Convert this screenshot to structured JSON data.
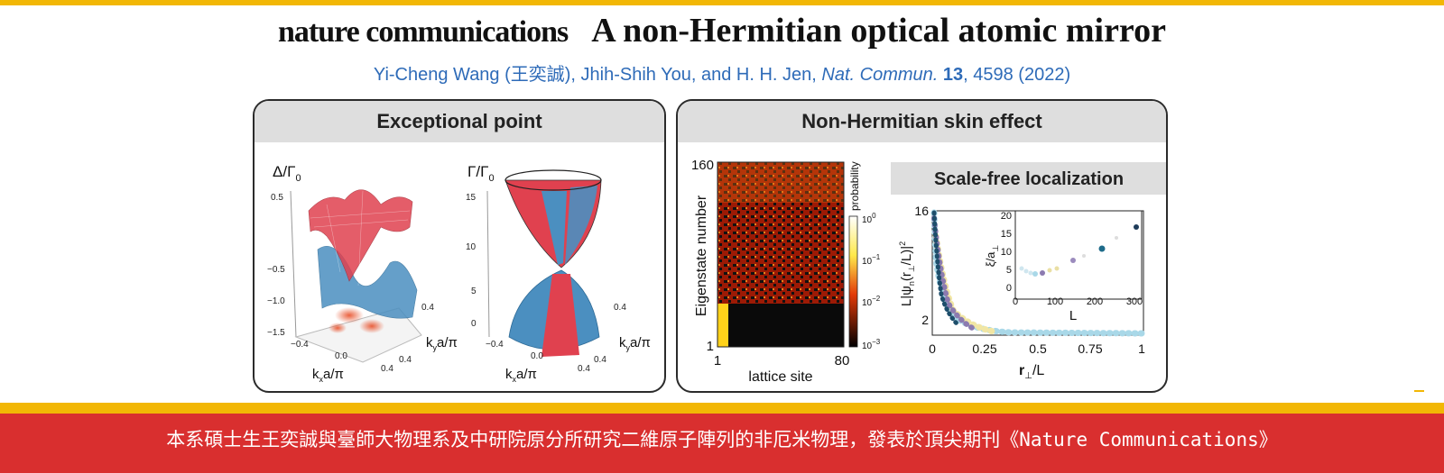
{
  "header": {
    "journal": "nature communications",
    "title": "A non-Hermitian optical atomic mirror",
    "citation": {
      "authors": "Yi-Cheng Wang (王奕誠), Jhih-Shih You, and H. H. Jen, ",
      "journal": "Nat. Commun.",
      "volume": "13",
      "rest": ", 4598 (2022)"
    }
  },
  "left_panel": {
    "title": "Exceptional point",
    "plot1": {
      "zlabel": "Δ/Γ",
      "zlabel_sub": "0",
      "zticks": [
        "0.5",
        "−0.5",
        "−1.0",
        "−1.5"
      ],
      "xticks": [
        "−0.4",
        "0.0",
        "0.4"
      ],
      "yticks": [
        "0.4",
        "0.4"
      ],
      "xlabel": "k",
      "xlabel_sub": "x",
      "xlabel_rest": "a/π",
      "ylabel": "k",
      "ylabel_sub": "y",
      "ylabel_rest": "a/π"
    },
    "plot2": {
      "zlabel": "Γ/Γ",
      "zlabel_sub": "0",
      "zticks": [
        "15",
        "10",
        "5",
        "0"
      ],
      "xticks": [
        "−0.4",
        "0.0",
        "0.4"
      ],
      "yticks": [
        "0.4",
        "0.4"
      ],
      "xlabel": "k",
      "xlabel_sub": "x",
      "xlabel_rest": "a/π",
      "ylabel": "k",
      "ylabel_sub": "y",
      "ylabel_rest": "a/π"
    }
  },
  "right_panel": {
    "title": "Non-Hermitian skin effect",
    "heatmap": {
      "ylabel": "Eigenstate number",
      "xlabel": "lattice site",
      "ytick_top": "160",
      "ytick_bottom": "1",
      "xtick_left": "1",
      "xtick_right": "80",
      "colorbar_label": "probability",
      "colorbar_ticks": [
        "10",
        "10",
        "10",
        "10"
      ],
      "colorbar_exps": [
        "0",
        "−1",
        "−2",
        "−3"
      ]
    },
    "subpanel_title": "Scale-free localization",
    "main_plot": {
      "ytick_top": "16",
      "ytick_bottom": "2",
      "xticks": [
        "0",
        "0.25",
        "0.5",
        "0.75",
        "1"
      ],
      "xlabel_r": "r",
      "xlabel_sub": "⊥",
      "xlabel_rest": "/L",
      "ylabel": "L|ψ",
      "ylabel_n": "n",
      "ylabel_mid": "(r",
      "ylabel_perp": "⊥",
      "ylabel_end": "/L)|",
      "ylabel_sup": "2"
    },
    "inset": {
      "yticks": [
        "20",
        "15",
        "10",
        "5",
        "0"
      ],
      "xticks": [
        "0",
        "100",
        "200",
        "300"
      ],
      "xlabel": "L",
      "ylabel": "ξ/a",
      "ylabel_sub": "⊥"
    }
  },
  "banner": {
    "text": "本系碩士生王奕誠與臺師大物理系及中研院原分所研究二維原子陣列的非厄米物理，發表於頂尖期刊《Nature Communications》"
  },
  "colors": {
    "accent_yellow": "#f2b705",
    "banner_red": "#d92f2f",
    "citation_blue": "#2e6bb8",
    "surface_red": "#e0414f",
    "surface_blue": "#4b8fc0"
  }
}
